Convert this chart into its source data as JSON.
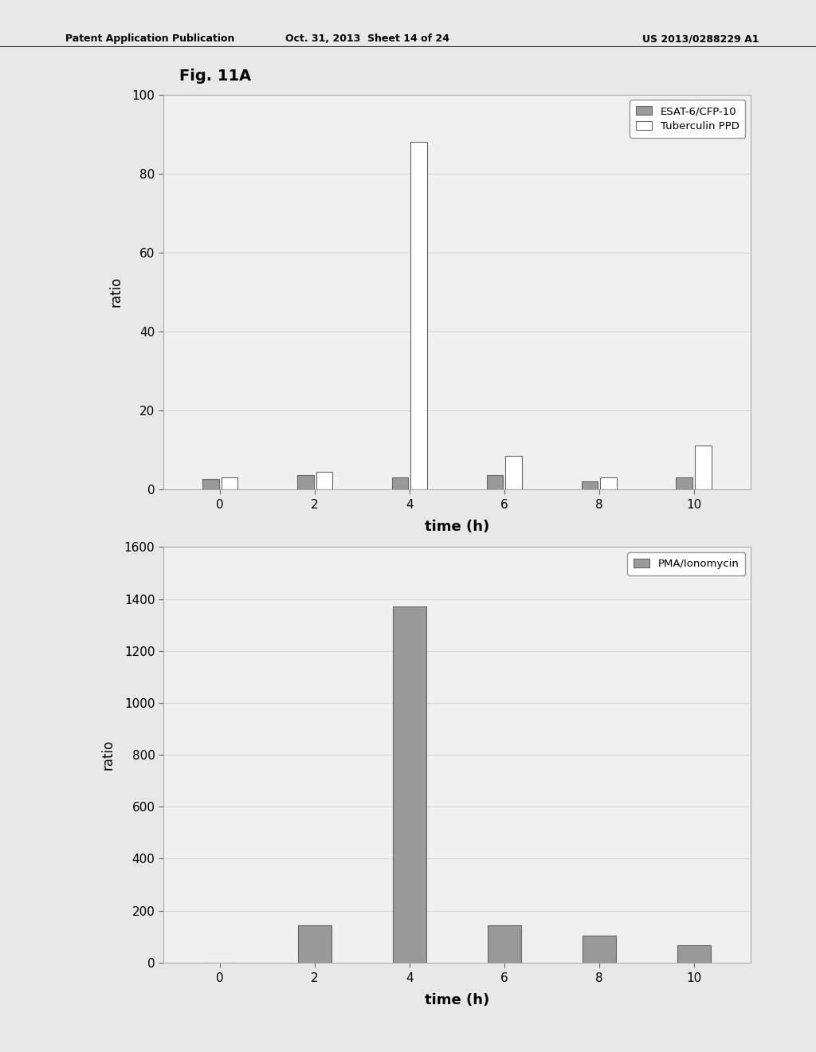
{
  "fig_label": "Fig. 11A",
  "header_left": "Patent Application Publication",
  "header_mid": "Oct. 31, 2013  Sheet 14 of 24",
  "header_right": "US 2013/0288229 A1",
  "chart1": {
    "xlabel": "time (h)",
    "ylabel": "ratio",
    "ylim": [
      0,
      100
    ],
    "yticks": [
      0,
      20,
      40,
      60,
      80,
      100
    ],
    "xticks": [
      0,
      2,
      4,
      6,
      8,
      10
    ],
    "time_points": [
      0,
      2,
      4,
      6,
      8,
      10
    ],
    "esat_values": [
      2.5,
      3.5,
      3.0,
      3.5,
      2.0,
      3.0
    ],
    "ppd_values": [
      3.0,
      4.5,
      88.0,
      8.5,
      3.0,
      11.0
    ],
    "esat_color": "#999999",
    "ppd_color": "#ffffff",
    "esat_edgecolor": "#666666",
    "ppd_edgecolor": "#666666",
    "esat_label": "ESAT-6/CFP-10",
    "ppd_label": "Tuberculin PPD"
  },
  "chart2": {
    "xlabel": "time (h)",
    "ylabel": "ratio",
    "ylim": [
      0,
      1600
    ],
    "yticks": [
      0,
      200,
      400,
      600,
      800,
      1000,
      1200,
      1400,
      1600
    ],
    "xticks": [
      0,
      2,
      4,
      6,
      8,
      10
    ],
    "time_points": [
      0,
      2,
      4,
      6,
      8,
      10
    ],
    "pma_values": [
      0,
      145,
      1370,
      145,
      105,
      68
    ],
    "pma_color": "#999999",
    "pma_edgecolor": "#666666",
    "pma_label": "PMA/Ionomycin"
  },
  "page_bg": "#e8e8e8",
  "plot_bg": "#f0f0f0",
  "text_color": "#000000",
  "spine_color": "#aaaaaa"
}
